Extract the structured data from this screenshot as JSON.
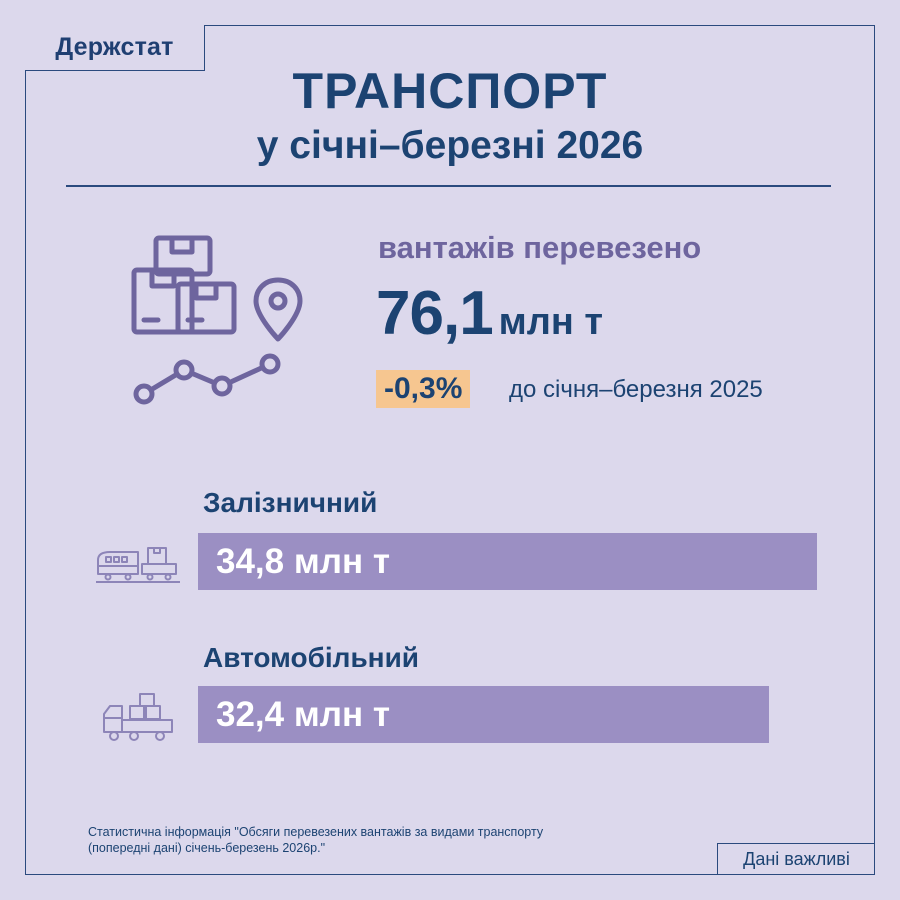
{
  "brand": "Держстат",
  "title_line1": "ТРАНСПОРТ",
  "title_line2": "у січні–березні 2026",
  "hero": {
    "label": "вантажів перевезено",
    "value": "76,1",
    "unit": "млн т",
    "change": "-0,3%",
    "change_text": "до січня–березня 2025",
    "icon": "boxes-location-route-icon"
  },
  "modes": [
    {
      "label": "Залізничний",
      "value_text": "34,8 млн т",
      "value": 34.8,
      "icon": "train-cargo-icon"
    },
    {
      "label": "Автомобільний",
      "value_text": "32,4 млн т",
      "value": 32.4,
      "icon": "truck-cargo-icon"
    }
  ],
  "footnote_line1": "Статистична інформація \"Обсяги перевезених вантажів за видами транспорту",
  "footnote_line2": "(попередні дані) січень-березень 2026р.\"",
  "tag": "Дані важливі",
  "colors": {
    "background": "#dcd8ec",
    "text": "#1c4372",
    "accent_label": "#6e659e",
    "bar": "#9b8fc3",
    "badge": "#f6c690"
  }
}
